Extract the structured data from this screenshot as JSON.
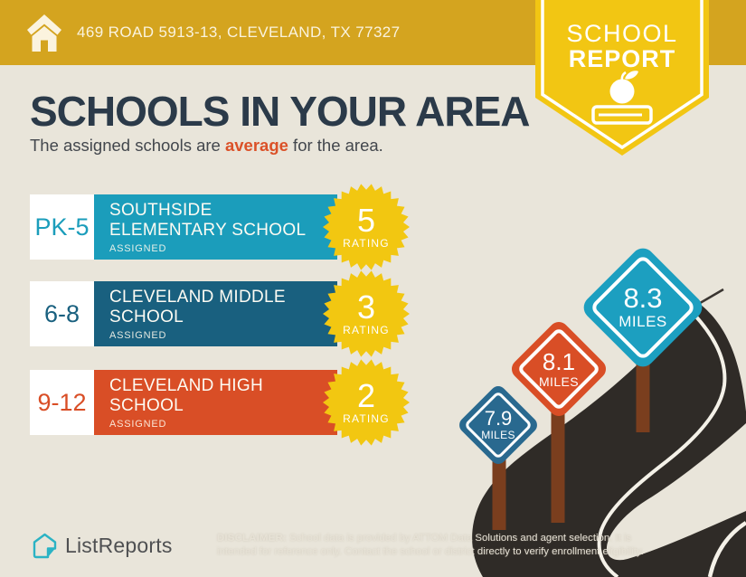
{
  "header": {
    "address": "469 ROAD 5913-13, CLEVELAND, TX 77327"
  },
  "badge": {
    "line1": "SCHOOL",
    "line2": "REPORT"
  },
  "title": "SCHOOLS IN YOUR AREA",
  "subtitle": {
    "prefix": "The assigned schools are ",
    "highlight": "average",
    "suffix": " for the area."
  },
  "schools": [
    {
      "grades": "PK-5",
      "name_line1": "SOUTHSIDE",
      "name_line2": "ELEMENTARY SCHOOL",
      "status": "ASSIGNED",
      "rating": "5",
      "rating_label": "RATING",
      "color": "#1B9DBB"
    },
    {
      "grades": "6-8",
      "name_line1": "CLEVELAND MIDDLE",
      "name_line2": "SCHOOL",
      "status": "ASSIGNED",
      "rating": "3",
      "rating_label": "RATING",
      "color": "#19607F"
    },
    {
      "grades": "9-12",
      "name_line1": "CLEVELAND HIGH",
      "name_line2": "SCHOOL",
      "status": "ASSIGNED",
      "rating": "2",
      "rating_label": "RATING",
      "color": "#D94E26"
    }
  ],
  "signs": [
    {
      "value": "8.3",
      "unit": "MILES",
      "color": "#1C9FC0"
    },
    {
      "value": "8.1",
      "unit": "MILES",
      "color": "#D94E26"
    },
    {
      "value": "7.9",
      "unit": "MILES",
      "color": "#29698F"
    }
  ],
  "footer": {
    "brand": "ListReports",
    "disclaimer_label": "DISCLAIMER:",
    "disclaimer_text": " School data is provided by ATTOM Data Solutions and agent selection. It is intended for reference only. Contact the school or district directly to verify enrollment eligibility."
  },
  "colors": {
    "header_bg": "#D4A41F",
    "badge_yellow": "#F2C613",
    "background": "#E9E5DA",
    "title_navy": "#2B3A49",
    "accent_orange": "#DB5128",
    "road": "#2F2B27",
    "post_brown": "#7A3E1E",
    "starburst_yellow": "#F2C711"
  }
}
